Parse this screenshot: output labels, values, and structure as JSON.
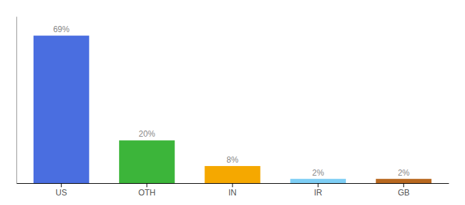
{
  "chart_data": {
    "type": "bar",
    "categories": [
      "US",
      "OTH",
      "IN",
      "IR",
      "GB"
    ],
    "values": [
      69,
      20,
      8,
      2,
      2
    ],
    "value_labels": [
      "69%",
      "20%",
      "8%",
      "2%",
      "2%"
    ],
    "colors": [
      "#4a6ee0",
      "#3cb53a",
      "#f5a800",
      "#7ecef5",
      "#b86820"
    ],
    "ylim": [
      0,
      78
    ],
    "data_labels": true,
    "tick_labels": "x"
  }
}
